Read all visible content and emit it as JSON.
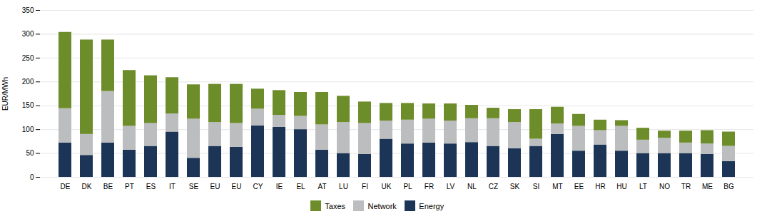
{
  "chart_data": {
    "type": "bar",
    "stacked": true,
    "categories": [
      "DE",
      "DK",
      "BE",
      "PT",
      "ES",
      "IT",
      "SE",
      "EU",
      "EU",
      "CY",
      "IE",
      "EL",
      "AT",
      "LU",
      "FI",
      "UK",
      "PL",
      "FR",
      "LV",
      "NL",
      "CZ",
      "SK",
      "SI",
      "MT",
      "EE",
      "HR",
      "HU",
      "LT",
      "NO",
      "TR",
      "ME",
      "BG"
    ],
    "series": [
      {
        "name": "Energy",
        "color": "#1c3557",
        "values": [
          72,
          46,
          72,
          57,
          65,
          95,
          40,
          65,
          63,
          108,
          105,
          100,
          57,
          50,
          48,
          80,
          70,
          72,
          70,
          73,
          65,
          60,
          65,
          90,
          55,
          68,
          55,
          50,
          50,
          50,
          48,
          33
        ]
      },
      {
        "name": "Network",
        "color": "#bbbdbe",
        "values": [
          72,
          44,
          108,
          50,
          48,
          38,
          82,
          50,
          50,
          35,
          25,
          28,
          53,
          65,
          65,
          38,
          50,
          50,
          48,
          50,
          58,
          55,
          15,
          22,
          52,
          30,
          52,
          28,
          32,
          22,
          22,
          32
        ]
      },
      {
        "name": "Taxes",
        "color": "#6d8c2a",
        "values": [
          160,
          198,
          108,
          117,
          100,
          76,
          72,
          80,
          82,
          42,
          52,
          50,
          68,
          55,
          45,
          37,
          35,
          32,
          36,
          28,
          22,
          27,
          62,
          35,
          25,
          22,
          12,
          25,
          15,
          25,
          28,
          30
        ]
      }
    ],
    "ylabel": "EUR/MWh",
    "ylim": [
      0,
      350
    ],
    "yticks": [
      0,
      50,
      100,
      150,
      200,
      250,
      300,
      350
    ],
    "grid": true,
    "legend": "bottom"
  }
}
